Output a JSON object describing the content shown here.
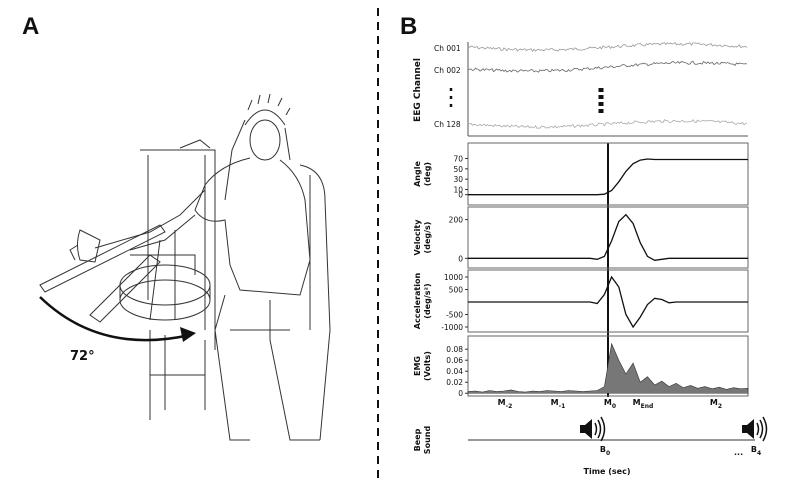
{
  "panels": {
    "a": "A",
    "b": "B"
  },
  "figure": {
    "angle_annotation": "72°"
  },
  "eeg": {
    "ylabel": "EEG Channel",
    "channels": [
      "Ch 001",
      "Ch 002",
      "Ch 128"
    ]
  },
  "markers": [
    {
      "base": "M",
      "sub": "-2"
    },
    {
      "base": "M",
      "sub": "-1"
    },
    {
      "base": "M",
      "sub": "0"
    },
    {
      "base": "M",
      "sub": "End"
    },
    {
      "base": "M",
      "sub": "2"
    }
  ],
  "beep": {
    "ylabel": [
      "Beep",
      "Sound"
    ],
    "labels": [
      {
        "base": "B",
        "sub": "0"
      },
      {
        "base": "B",
        "sub": "4"
      }
    ],
    "ellipsis": "...",
    "xlabel": "Time (sec)"
  },
  "chart_data": [
    {
      "type": "line",
      "ylabel": [
        "Angle",
        "(deg)"
      ],
      "ylim": [
        -20,
        100
      ],
      "yticks": [
        70,
        50,
        30,
        10,
        0
      ],
      "color": "#111111",
      "values": [
        0,
        0,
        0,
        0,
        0,
        0,
        0,
        0,
        0,
        0,
        0,
        0,
        0,
        0,
        0,
        0,
        0,
        0,
        0,
        1,
        8,
        25,
        45,
        60,
        67,
        69,
        68,
        68,
        68,
        68,
        68,
        68,
        68,
        68,
        68,
        68,
        68,
        68,
        68,
        68
      ]
    },
    {
      "type": "line",
      "ylabel": [
        "Velocity",
        "(deg/s)"
      ],
      "ylim": [
        -50,
        265
      ],
      "yticks": [
        200,
        0
      ],
      "color": "#111111",
      "values": [
        0,
        0,
        0,
        0,
        0,
        0,
        0,
        0,
        0,
        0,
        0,
        0,
        0,
        0,
        0,
        0,
        0,
        0,
        -5,
        10,
        90,
        190,
        225,
        180,
        80,
        10,
        -10,
        -5,
        0,
        0,
        0,
        0,
        0,
        0,
        0,
        0,
        0,
        0,
        0,
        0
      ]
    },
    {
      "type": "line",
      "ylabel": [
        "Acceleration",
        "(deg/s²)"
      ],
      "ylim": [
        -1200,
        1280
      ],
      "yticks": [
        1000,
        500,
        -500,
        -1000
      ],
      "color": "#111111",
      "values": [
        0,
        0,
        0,
        0,
        0,
        0,
        0,
        0,
        0,
        0,
        0,
        0,
        0,
        0,
        0,
        0,
        0,
        0,
        -60,
        300,
        1000,
        600,
        -500,
        -1000,
        -600,
        -100,
        150,
        100,
        -30,
        0,
        0,
        0,
        0,
        0,
        0,
        0,
        0,
        0,
        0,
        0
      ]
    },
    {
      "type": "area",
      "ylabel": [
        "EMG",
        "(Volts)"
      ],
      "ylim": [
        -0.005,
        0.104
      ],
      "yticks": [
        0.08,
        0.06,
        0.04,
        0.02,
        0
      ],
      "color": "#777777",
      "values": [
        0.003,
        0.004,
        0.002,
        0.005,
        0.003,
        0.004,
        0.006,
        0.003,
        0.002,
        0.004,
        0.003,
        0.005,
        0.004,
        0.003,
        0.005,
        0.004,
        0.003,
        0.004,
        0.005,
        0.012,
        0.09,
        0.06,
        0.035,
        0.055,
        0.02,
        0.03,
        0.015,
        0.022,
        0.012,
        0.018,
        0.01,
        0.014,
        0.009,
        0.012,
        0.008,
        0.011,
        0.007,
        0.01,
        0.008,
        0.009
      ]
    }
  ]
}
